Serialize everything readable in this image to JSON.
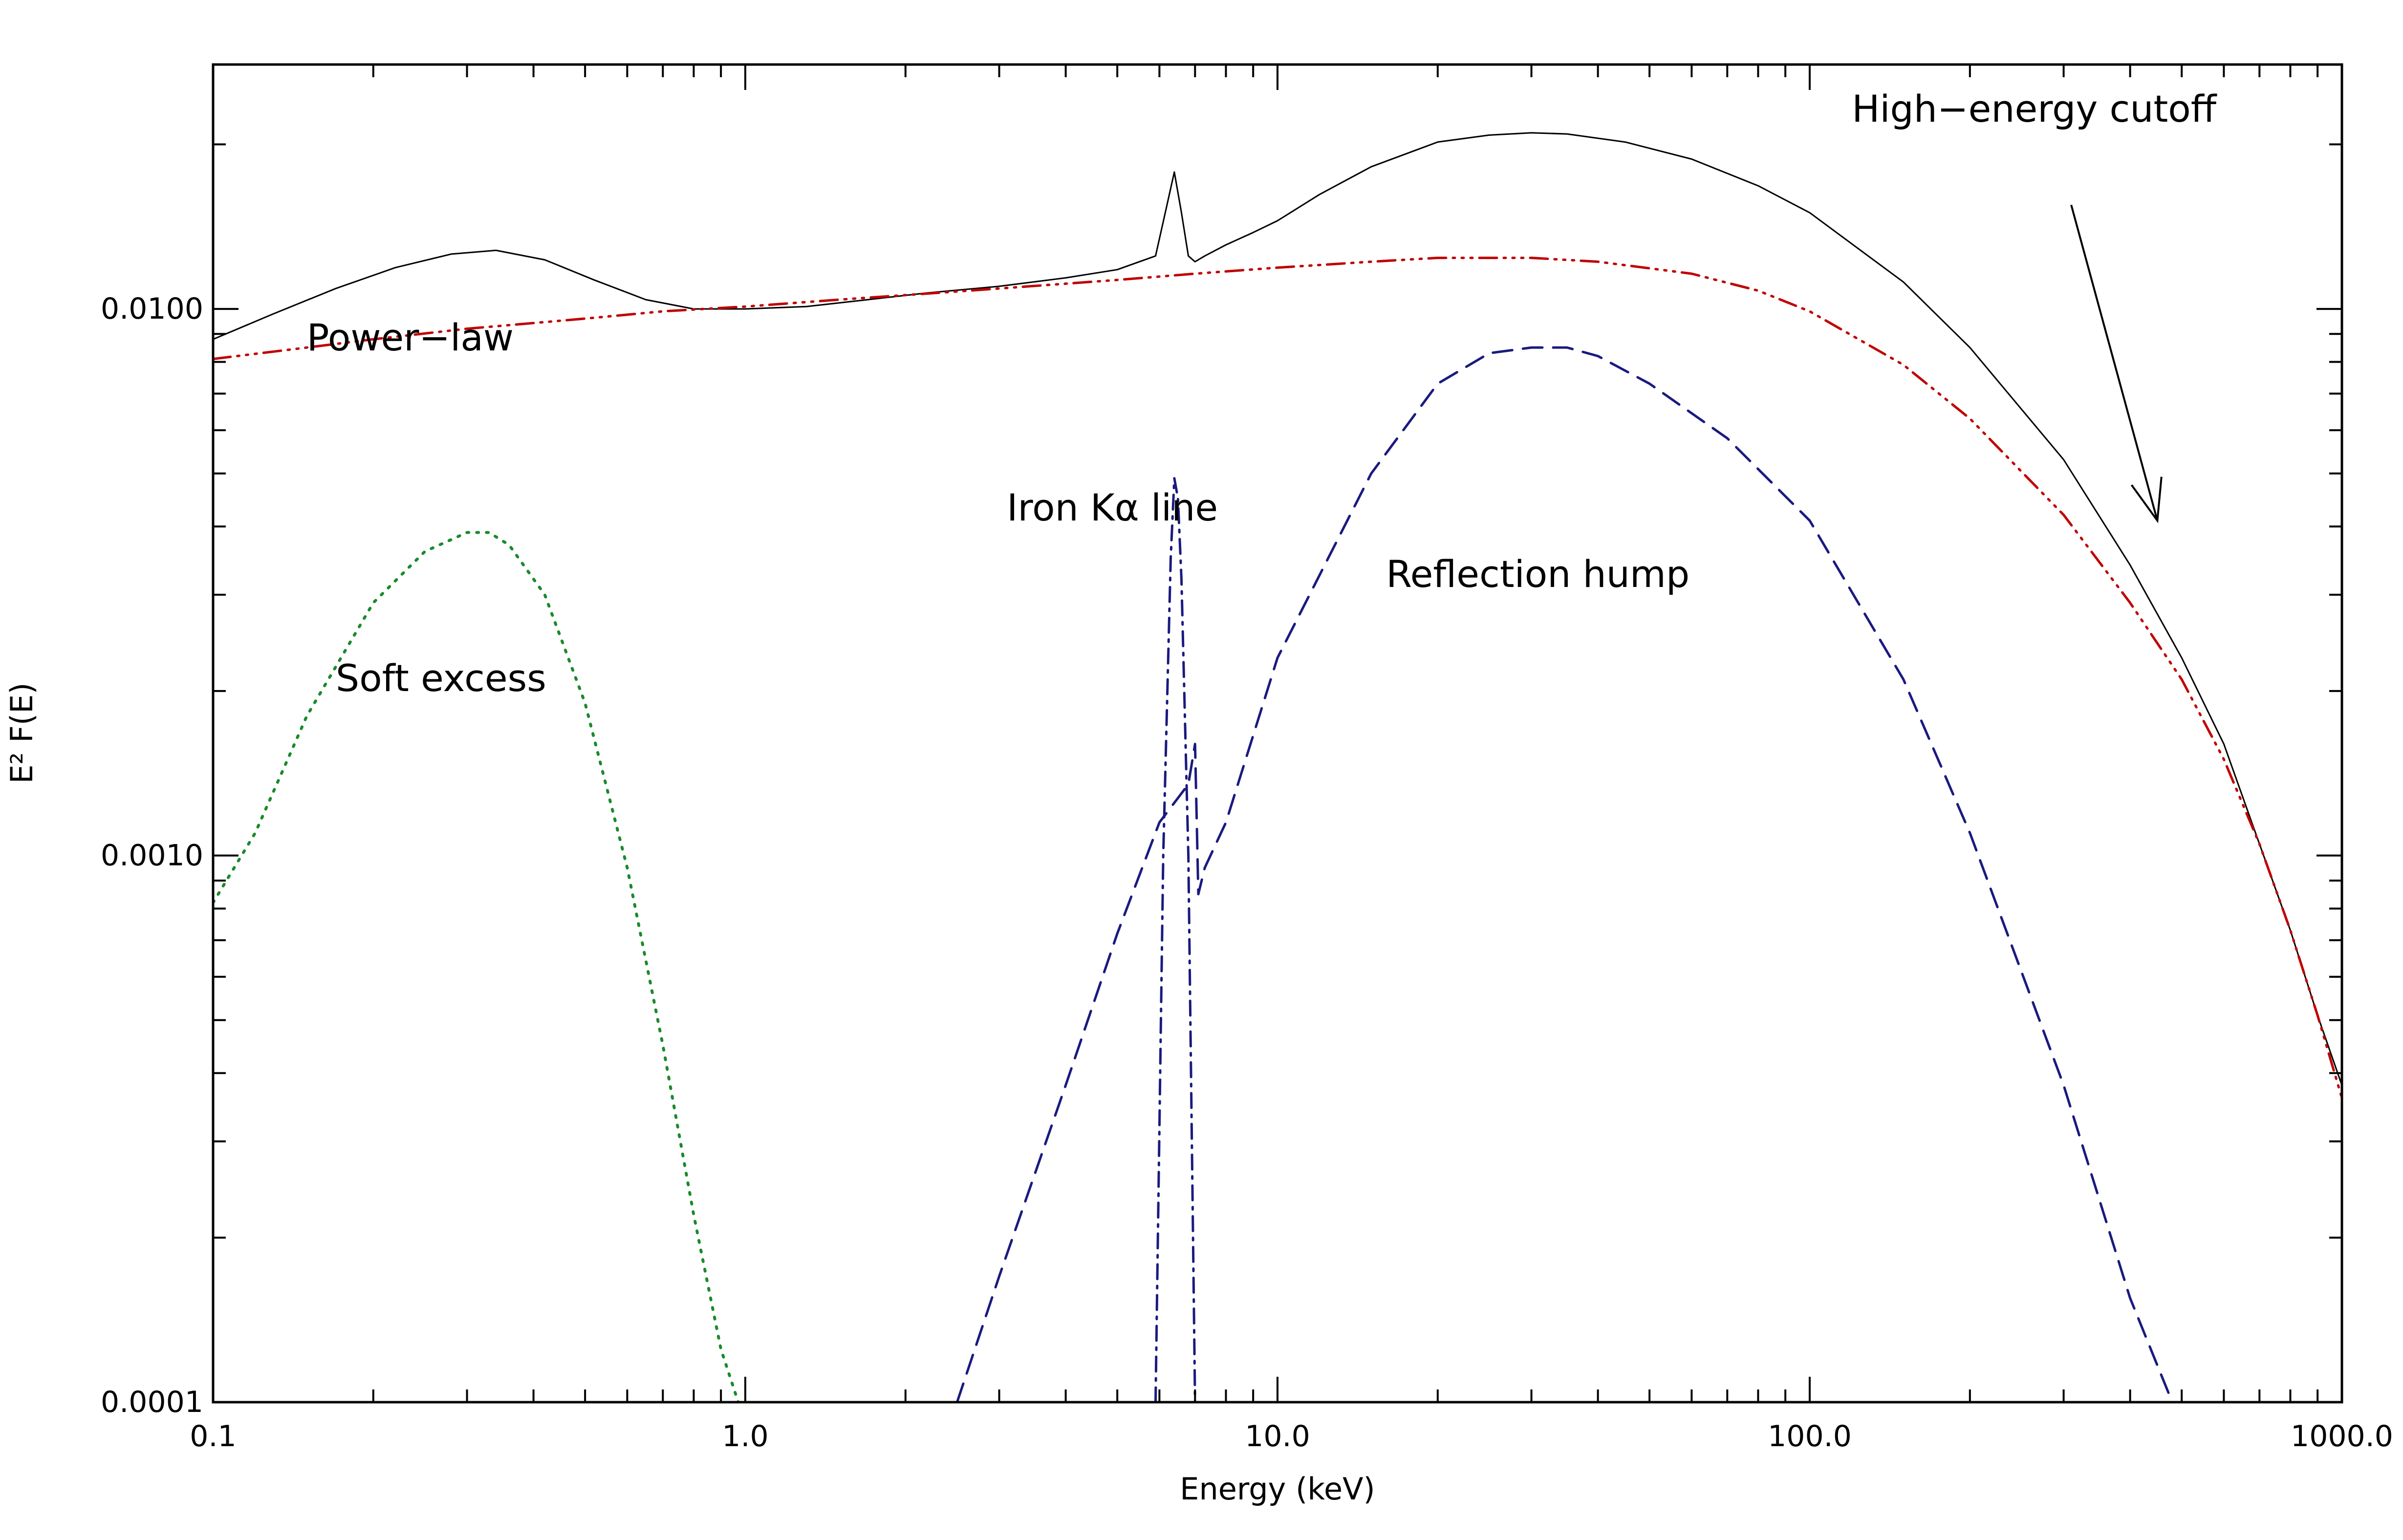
{
  "chart_data": {
    "type": "line",
    "title": "",
    "xlabel": "Energy (keV)",
    "ylabel": "E² F(E)",
    "xscale": "log",
    "yscale": "log",
    "xlim": [
      0.1,
      1000
    ],
    "ylim": [
      0.0001,
      0.028
    ],
    "grid": false,
    "legend": "none",
    "x_ticks": [
      {
        "value": 0.1,
        "label": "0.1"
      },
      {
        "value": 1,
        "label": "1.0"
      },
      {
        "value": 10,
        "label": "10.0"
      },
      {
        "value": 100,
        "label": "100.0"
      },
      {
        "value": 1000,
        "label": "1000.0"
      }
    ],
    "y_ticks": [
      {
        "value": 0.0001,
        "label": "0.0001"
      },
      {
        "value": 0.001,
        "label": "0.0010"
      },
      {
        "value": 0.01,
        "label": "0.0100"
      }
    ],
    "colors": {
      "total": "#000000",
      "power_law": "#c00000",
      "soft_excess": "#1a8a2a",
      "iron_line": "#1a1a80",
      "reflection": "#1a1a80",
      "axes": "#000000"
    },
    "series": [
      {
        "id": "total",
        "style": "solid",
        "x": [
          0.1,
          0.13,
          0.17,
          0.22,
          0.28,
          0.34,
          0.42,
          0.52,
          0.65,
          0.8,
          1.0,
          1.3,
          1.7,
          2.2,
          3.0,
          4.0,
          5.0,
          5.9,
          6.2,
          6.4,
          6.6,
          6.8,
          7.0,
          7.3,
          8.0,
          9.0,
          10.0,
          12.0,
          15.0,
          20.0,
          25.0,
          30.0,
          35.0,
          45.0,
          60.0,
          80.0,
          100.0,
          150.0,
          200.0,
          300.0,
          400.0,
          500.0,
          600.0,
          700.0,
          800.0,
          900.0,
          1000.0
        ],
        "y": [
          0.0088,
          0.0098,
          0.0109,
          0.0119,
          0.0126,
          0.0128,
          0.0123,
          0.0113,
          0.0104,
          0.01,
          0.01,
          0.0101,
          0.0104,
          0.0107,
          0.011,
          0.0114,
          0.0118,
          0.0125,
          0.0155,
          0.0178,
          0.015,
          0.0125,
          0.0122,
          0.0125,
          0.0131,
          0.0138,
          0.0145,
          0.0162,
          0.0182,
          0.0202,
          0.0208,
          0.021,
          0.0209,
          0.0202,
          0.0188,
          0.0168,
          0.015,
          0.0112,
          0.0085,
          0.0053,
          0.0034,
          0.0023,
          0.0016,
          0.00105,
          0.00073,
          0.00051,
          0.00038
        ]
      },
      {
        "id": "power_law",
        "style": "dash-dot-dot-dot",
        "x": [
          0.1,
          0.15,
          0.2,
          0.3,
          0.5,
          0.7,
          1.0,
          1.5,
          2.0,
          3.0,
          5.0,
          7.0,
          10.0,
          15.0,
          20.0,
          30.0,
          40.0,
          60.0,
          80.0,
          100.0,
          150.0,
          200.0,
          300.0,
          400.0,
          500.0,
          600.0,
          700.0,
          800.0,
          900.0,
          1000.0
        ],
        "y": [
          0.0081,
          0.0085,
          0.0088,
          0.0092,
          0.0096,
          0.0099,
          0.0101,
          0.0104,
          0.0106,
          0.0109,
          0.0113,
          0.0116,
          0.0119,
          0.0122,
          0.0124,
          0.0124,
          0.0122,
          0.0116,
          0.0108,
          0.0099,
          0.0079,
          0.0063,
          0.0042,
          0.0029,
          0.0021,
          0.0015,
          0.00105,
          0.00073,
          0.00051,
          0.00036
        ]
      },
      {
        "id": "soft_excess",
        "style": "dotted",
        "x": [
          0.1,
          0.12,
          0.15,
          0.2,
          0.25,
          0.3,
          0.33,
          0.36,
          0.42,
          0.5,
          0.6,
          0.7,
          0.8,
          0.9,
          0.97
        ],
        "y": [
          0.00082,
          0.0011,
          0.0018,
          0.0029,
          0.0036,
          0.0039,
          0.0039,
          0.0037,
          0.003,
          0.0019,
          0.00095,
          0.00045,
          0.00022,
          0.000125,
          0.0001
        ]
      },
      {
        "id": "iron_line",
        "style": "dash-dot",
        "x": [
          5.9,
          6.1,
          6.3,
          6.4,
          6.5,
          6.6,
          6.8,
          7.0
        ],
        "y": [
          0.0001,
          0.001,
          0.0035,
          0.0049,
          0.0045,
          0.0032,
          0.001,
          0.0001
        ]
      },
      {
        "id": "reflection",
        "style": "dashed",
        "x": [
          2.5,
          3.0,
          4.0,
          5.0,
          6.0,
          6.8,
          7.0,
          7.1,
          7.3,
          8.0,
          10.0,
          15.0,
          20.0,
          25.0,
          30.0,
          35.0,
          40.0,
          50.0,
          70.0,
          100.0,
          150.0,
          200.0,
          300.0,
          400.0,
          480.0
        ],
        "y": [
          0.0001,
          0.00017,
          0.00038,
          0.00072,
          0.00115,
          0.00135,
          0.0016,
          0.00085,
          0.00095,
          0.00115,
          0.0023,
          0.005,
          0.0073,
          0.0083,
          0.0085,
          0.0085,
          0.0082,
          0.0073,
          0.0058,
          0.0041,
          0.0021,
          0.0011,
          0.00038,
          0.000155,
          0.0001
        ]
      }
    ],
    "annotations": [
      {
        "id": "power-law",
        "text": "Power−law",
        "x": 0.15,
        "y": 0.0084
      },
      {
        "id": "soft-excess",
        "text": "Soft excess",
        "x": 0.17,
        "y": 0.002
      },
      {
        "id": "iron-line",
        "text": "Iron Kα line",
        "x": 3.1,
        "y": 0.0041
      },
      {
        "id": "reflection",
        "text": "Reflection hump",
        "x": 16.0,
        "y": 0.0031
      },
      {
        "id": "cutoff",
        "text": "High−energy cutoff",
        "x": 120.0,
        "y": 0.022
      }
    ],
    "arrow": {
      "from": {
        "x": 310.0,
        "y": 0.0155
      },
      "to": {
        "x": 450.0,
        "y": 0.0041
      }
    }
  }
}
